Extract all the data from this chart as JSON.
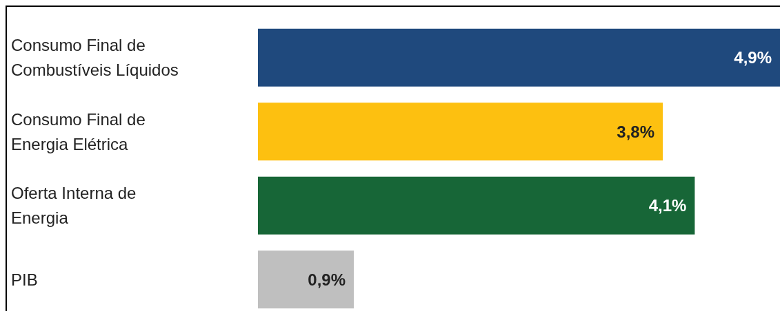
{
  "chart_data": {
    "type": "bar",
    "orientation": "horizontal",
    "categories": [
      "Consumo Final de Combustíveis Líquidos",
      "Consumo Final de Energia Elétrica",
      "Oferta Interna de Energia",
      "PIB"
    ],
    "values": [
      4.9,
      3.8,
      4.1,
      0.9
    ],
    "colors": [
      "#1f497d",
      "#fdc010",
      "#176637",
      "#bfbfbf"
    ],
    "value_labels": [
      "4,9%",
      "3,8%",
      "4,1%",
      "0,9%"
    ]
  }
}
